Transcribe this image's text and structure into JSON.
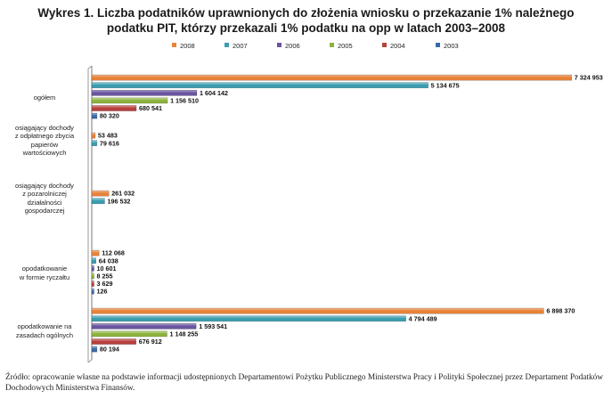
{
  "title_line1": "Wykres 1. Liczba podatników uprawnionych do złożenia wniosku o przekazanie 1% należnego",
  "title_line2": "podatku PIT, którzy przekazali 1% podatku na opp w latach 2003–2008",
  "source_text": "Źródło: opracowanie własne na podstawie informacji udostępnionych Departamentowi Pożytku Publicznego Ministerstwa Pracy i Polityki Społecznej przez Departament Podatków Dochodowych Ministerstwa Finansów.",
  "chart_data": {
    "type": "bar",
    "orientation": "horizontal",
    "title": "Wykres 1. Liczba podatników uprawnionych do złożenia wniosku o przekazanie 1% należnego podatku PIT, którzy przekazali 1% podatku na opp w latach 2003–2008",
    "xlim": [
      0,
      7600000
    ],
    "grid": false,
    "legend_position": "top",
    "categories": [
      "ogółem",
      "osiągający dochody z odpłatnego zbycia papierów wartościowych",
      "osiągający dochody z pozarolniczej działalności gospodarczej",
      "opodatkowanie w formie ryczałtu",
      "opodatkowanie na zasadach ogólnych"
    ],
    "category_lines": [
      [
        "ogółem"
      ],
      [
        "osiągający dochody",
        "z odpłatnego zbycia",
        "papierów",
        "wartościowych"
      ],
      [
        "osiągający dochody",
        "z pozarolniczej",
        "działalności",
        "gospodarczej"
      ],
      [
        "opodatkowanie",
        "w formie ryczałtu"
      ],
      [
        "opodatkowanie na",
        "zasadach ogólnych"
      ]
    ],
    "series": [
      {
        "name": "2008",
        "color": "#e8833a",
        "values": [
          7324953,
          53483,
          261032,
          112068,
          6898370
        ]
      },
      {
        "name": "2007",
        "color": "#3a9db0",
        "values": [
          5134675,
          79616,
          196532,
          64038,
          4794489
        ]
      },
      {
        "name": "2006",
        "color": "#6a55a0",
        "values": [
          1604142,
          null,
          null,
          10601,
          1593541
        ]
      },
      {
        "name": "2005",
        "color": "#8db33f",
        "values": [
          1156510,
          null,
          null,
          8255,
          1148255
        ]
      },
      {
        "name": "2004",
        "color": "#b8403d",
        "values": [
          680541,
          null,
          null,
          3629,
          676912
        ]
      },
      {
        "name": "2003",
        "color": "#3a6aa8",
        "values": [
          80320,
          null,
          null,
          126,
          80194
        ]
      }
    ],
    "value_labels": [
      [
        "7 324 953",
        "5 134 675",
        "1 604 142",
        "1 156 510",
        "680 541",
        "80 320"
      ],
      [
        "53 483",
        "79 616"
      ],
      [
        "261 032",
        "196 532"
      ],
      [
        "112 068",
        "64 038",
        "10 601",
        "8 255",
        "3 629",
        "126"
      ],
      [
        "6 898 370",
        "4 794 489",
        "1 593 541",
        "1 148 255",
        "676 912",
        "80 194"
      ]
    ]
  }
}
